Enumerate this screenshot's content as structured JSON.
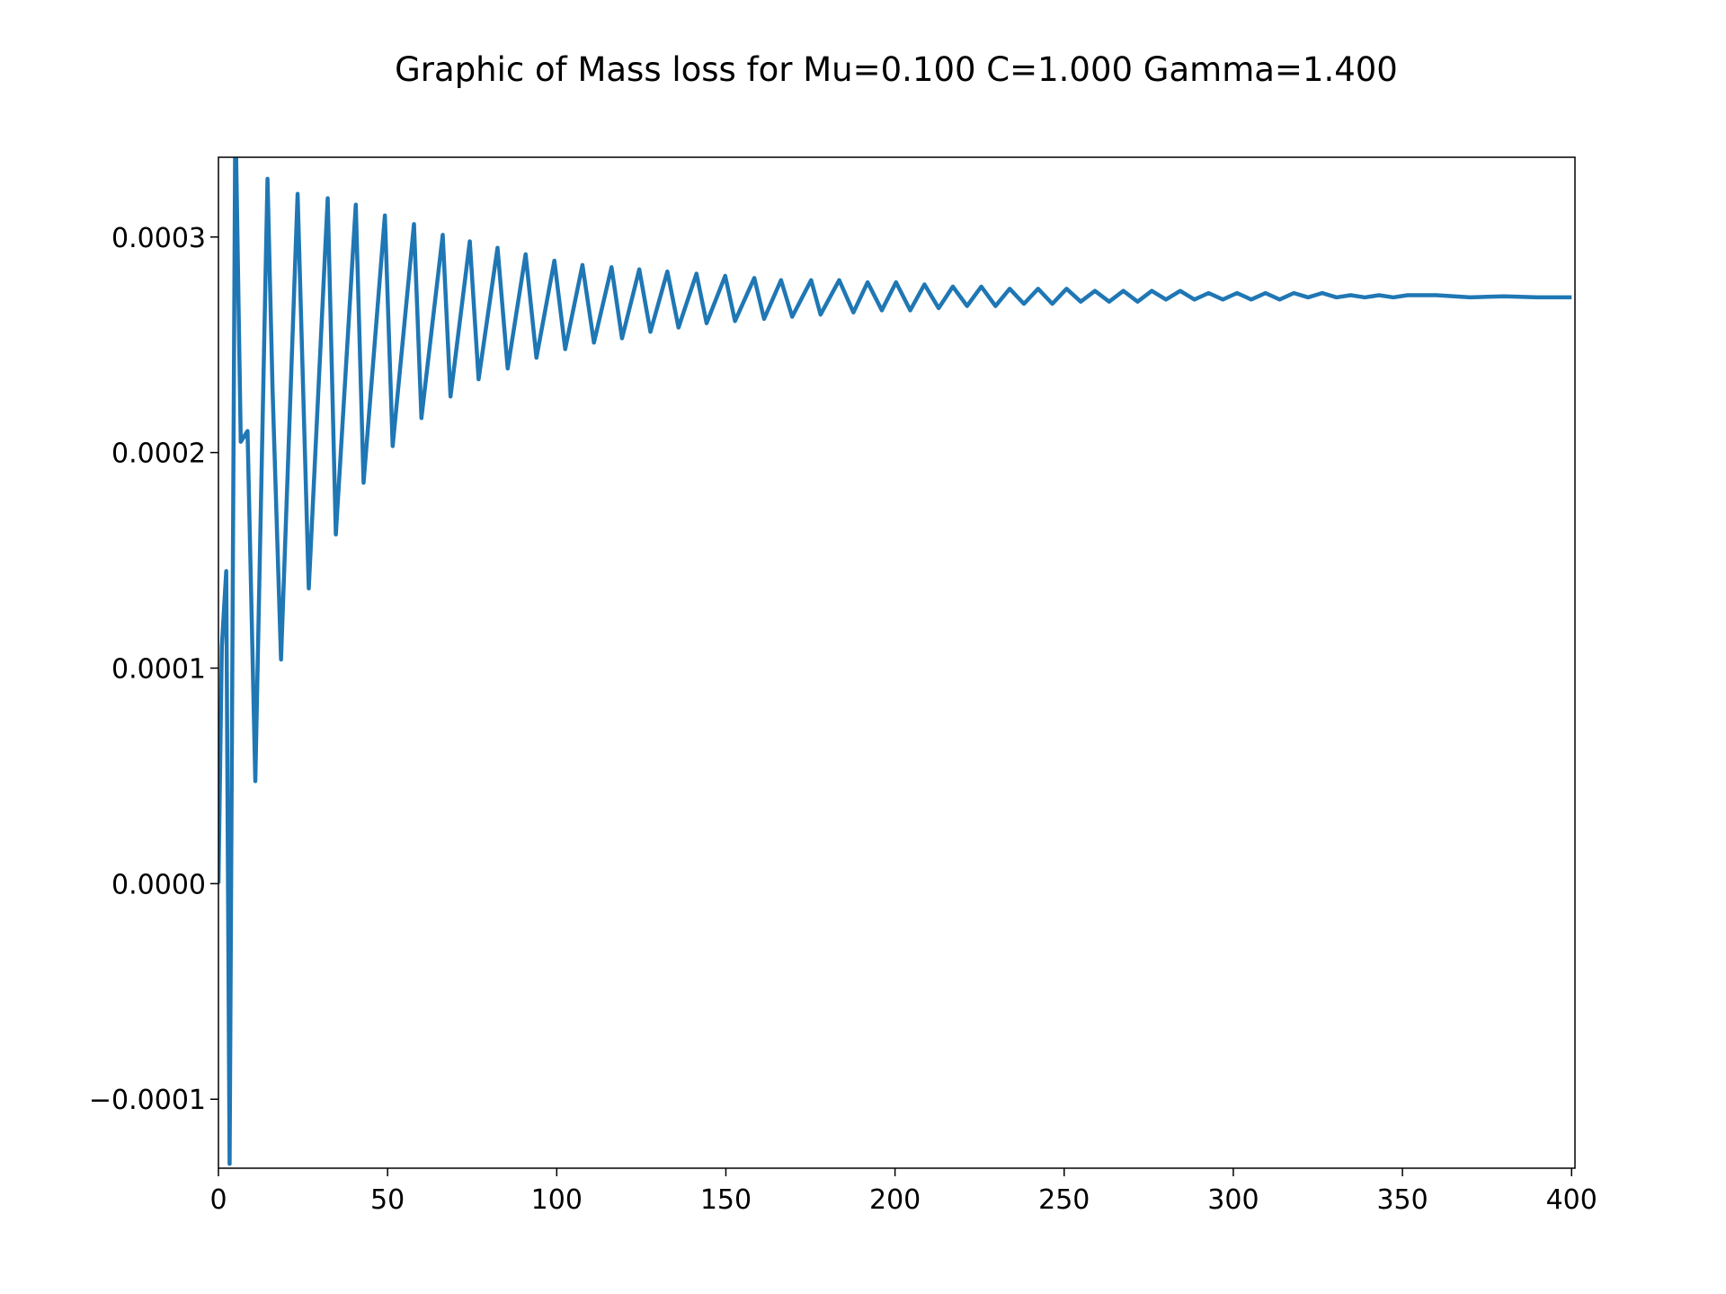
{
  "chart_data": {
    "type": "line",
    "title": "Graphic of Mass loss for Mu=0.100 C=1.000 Gamma=1.400",
    "x": [
      0,
      1,
      2.3,
      3.3,
      5,
      6.6,
      8.6,
      10.9,
      14.5,
      16,
      18.5,
      23.4,
      26.7,
      32.3,
      34.7,
      40.6,
      42.9,
      49.2,
      51.5,
      57.8,
      60,
      66.3,
      68.6,
      74.3,
      76.9,
      82.5,
      85.5,
      90.8,
      94,
      99.3,
      102.5,
      107.6,
      111,
      116.2,
      119.3,
      124.4,
      127.7,
      132.7,
      136,
      141.3,
      144.3,
      149.8,
      152.7,
      158.4,
      161.3,
      166.3,
      169.6,
      175.2,
      178,
      183.5,
      187.7,
      191.9,
      196.1,
      200.3,
      204.5,
      208.7,
      212.9,
      217.1,
      221.3,
      225.5,
      229.7,
      233.9,
      238.1,
      242.3,
      246.5,
      250.7,
      254.9,
      259.1,
      263.3,
      267.5,
      271.7,
      275.9,
      280.1,
      284.3,
      288.5,
      292.7,
      296.9,
      301.1,
      305.3,
      309.5,
      313.7,
      317.9,
      322.1,
      326.3,
      330.5,
      334.7,
      338.9,
      343.1,
      347.3,
      351.5,
      360,
      370,
      380,
      390,
      400
    ],
    "series": [
      {
        "name": "Mass loss",
        "color": "#1f77b4",
        "values": [
          0,
          0.00011,
          0.000145,
          -0.00013,
          0.00036,
          0.000205,
          0.00021,
          4.76e-05,
          0.000327,
          0.000229,
          0.000104,
          0.00032,
          0.000137,
          0.000318,
          0.000162,
          0.000315,
          0.000186,
          0.00031,
          0.000203,
          0.000306,
          0.000216,
          0.000301,
          0.000226,
          0.000298,
          0.000234,
          0.000295,
          0.000239,
          0.000292,
          0.000244,
          0.000289,
          0.000248,
          0.000287,
          0.000251,
          0.000286,
          0.000253,
          0.000285,
          0.000256,
          0.000284,
          0.000258,
          0.000283,
          0.00026,
          0.000282,
          0.000261,
          0.000281,
          0.000262,
          0.00028,
          0.000263,
          0.00028,
          0.000264,
          0.00028,
          0.000265,
          0.000279,
          0.000266,
          0.000279,
          0.000266,
          0.000278,
          0.000267,
          0.000277,
          0.000268,
          0.000277,
          0.000268,
          0.000276,
          0.000269,
          0.000276,
          0.000269,
          0.000276,
          0.00027,
          0.000275,
          0.00027,
          0.000275,
          0.00027,
          0.000275,
          0.000271,
          0.000275,
          0.000271,
          0.000274,
          0.000271,
          0.000274,
          0.000271,
          0.000274,
          0.000271,
          0.000274,
          0.000272,
          0.000274,
          0.000272,
          0.000273,
          0.000272,
          0.000273,
          0.000272,
          0.000273,
          0.000273,
          0.000272,
          0.0002725,
          0.000272,
          0.000272
        ]
      }
    ],
    "xlim": [
      0,
      401
    ],
    "ylim": [
      -0.000132,
      0.000337
    ],
    "xticks": [
      0,
      50,
      100,
      150,
      200,
      250,
      300,
      350,
      400
    ],
    "yticks": [
      {
        "value": -0.0001,
        "label": "−0.0001"
      },
      {
        "value": 0,
        "label": "0.0000"
      },
      {
        "value": 0.0001,
        "label": "0.0001"
      },
      {
        "value": 0.0002,
        "label": "0.0002"
      },
      {
        "value": 0.0003,
        "label": "0.0003"
      }
    ]
  }
}
